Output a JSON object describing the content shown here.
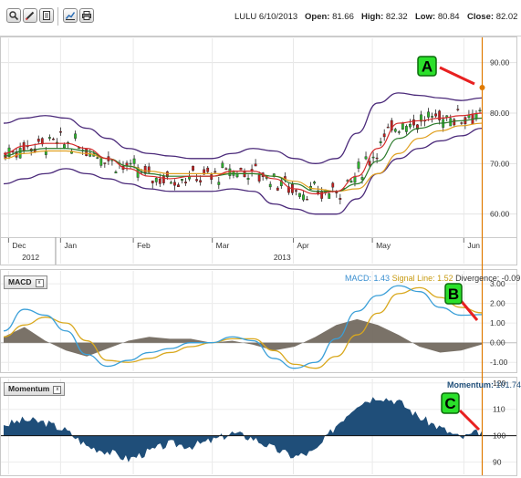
{
  "toolbar": {
    "icons": [
      "zoom-icon",
      "pencil-icon",
      "document-icon",
      "chart-settings-icon",
      "print-icon"
    ]
  },
  "quote": {
    "symbol_date": "LULU 6/10/2013",
    "open_label": "Open:",
    "open": "81.66",
    "high_label": "High:",
    "high": "82.32",
    "low_label": "Low:",
    "low": "80.84",
    "close_label": "Close:",
    "close": "82.02"
  },
  "annotations": {
    "a": "A",
    "b": "B",
    "c": "C"
  },
  "panels": {
    "macd": {
      "title": "MACD",
      "macd_label": "MACD:",
      "macd_value": "1.43",
      "signal_label": "Signal Line:",
      "signal_value": "1.52",
      "divergence_label": "Divergence:",
      "divergence_value": "-0.09"
    },
    "momentum": {
      "title": "Momentum",
      "label": "Momentum:",
      "value": "101.74"
    }
  },
  "colors": {
    "macd_line": "#3a9fd8",
    "signal_line": "#d9a81e",
    "divergence": "#6b6358",
    "momentum_fill": "#1f4e79",
    "bollinger": "#4b2a7a",
    "sma_fast": "#d42a2a",
    "sma_mid": "#2a7a2a",
    "sma_slow": "#e0a020",
    "cursor": "#e07a00",
    "arrow": "#e82020"
  },
  "chart_data": [
    {
      "type": "candlestick",
      "title": "",
      "ylim": [
        50,
        95
      ],
      "y_ticks": [
        "90.00",
        "80.00",
        "70.00",
        "60.00"
      ],
      "x_ticks": [
        "Dec",
        "Jan",
        "Feb",
        "Mar",
        "Apr",
        "May",
        "Jun"
      ],
      "x_year_labels": [
        "2012",
        "2013"
      ],
      "upper_band": [
        78,
        79,
        79.5,
        79,
        77,
        75,
        73,
        72,
        71.5,
        71,
        71,
        72,
        73,
        72.5,
        71,
        70,
        71,
        76,
        82,
        84,
        83.5,
        83,
        82.5,
        83
      ],
      "lower_band": [
        66,
        67,
        68,
        69,
        68,
        67,
        66,
        65,
        64.5,
        64.5,
        64.5,
        65,
        64.5,
        62,
        61,
        60,
        60,
        63,
        68,
        71,
        73,
        74.5,
        75.5,
        77
      ],
      "sma_fast": [
        72,
        73.5,
        74,
        74,
        73,
        71,
        69,
        67.5,
        67,
        67.5,
        67.5,
        68.5,
        68.5,
        67,
        65,
        64,
        64.5,
        67.5,
        73,
        78,
        78.5,
        79,
        79.5,
        80
      ],
      "sma_mid": [
        71.5,
        72.5,
        73,
        73,
        72.5,
        71,
        69.5,
        68,
        67.5,
        67.5,
        67.5,
        68,
        68,
        67.5,
        66,
        64.5,
        64.5,
        66,
        70.5,
        75,
        77,
        78,
        78.5,
        79
      ],
      "sma_slow": [
        71,
        72,
        72.5,
        72.5,
        72,
        71,
        69.5,
        68.5,
        68,
        68,
        68,
        68,
        68,
        67.5,
        66.5,
        65,
        64.5,
        65,
        68,
        72,
        75,
        76.5,
        77.5,
        78
      ]
    },
    {
      "type": "line",
      "title": "MACD",
      "ylim": [
        -1.5,
        3.7
      ],
      "y_ticks": [
        "3.00",
        "2.00",
        "1.00",
        "0.00",
        "-1.00"
      ],
      "series": [
        {
          "name": "MACD",
          "values": [
            0.6,
            1.7,
            1.4,
            0.6,
            -0.6,
            -1.2,
            -0.9,
            -0.5,
            -0.3,
            0,
            0,
            0.3,
            0.1,
            -0.8,
            -1.3,
            -1.0,
            0.2,
            1.6,
            2.4,
            2.9,
            2.6,
            1.8,
            1.4,
            1.43
          ]
        },
        {
          "name": "Signal Line",
          "values": [
            0.3,
            0.9,
            1.3,
            1.0,
            0.1,
            -0.9,
            -1.0,
            -0.8,
            -0.5,
            -0.2,
            0,
            0.2,
            0.2,
            -0.4,
            -1.1,
            -1.3,
            -0.7,
            0.4,
            1.5,
            2.5,
            2.8,
            2.3,
            1.8,
            1.52
          ]
        },
        {
          "name": "Divergence",
          "values": [
            0.3,
            0.8,
            0.1,
            -0.4,
            -0.7,
            -0.3,
            0.1,
            0.3,
            0.2,
            0.2,
            0,
            0.1,
            -0.1,
            -0.4,
            -0.2,
            0.3,
            0.9,
            1.2,
            0.9,
            0.4,
            -0.2,
            -0.5,
            -0.4,
            -0.09
          ]
        }
      ]
    },
    {
      "type": "area",
      "title": "Momentum",
      "ylim": [
        85,
        122
      ],
      "y_ticks": [
        "120",
        "110",
        "100",
        "90"
      ],
      "baseline": 100,
      "values": [
        104,
        106,
        105,
        102,
        96,
        94,
        91,
        94,
        97,
        96,
        98,
        101,
        99,
        95,
        92,
        94,
        104,
        112,
        115,
        113,
        107,
        103,
        99,
        101.74
      ]
    }
  ]
}
